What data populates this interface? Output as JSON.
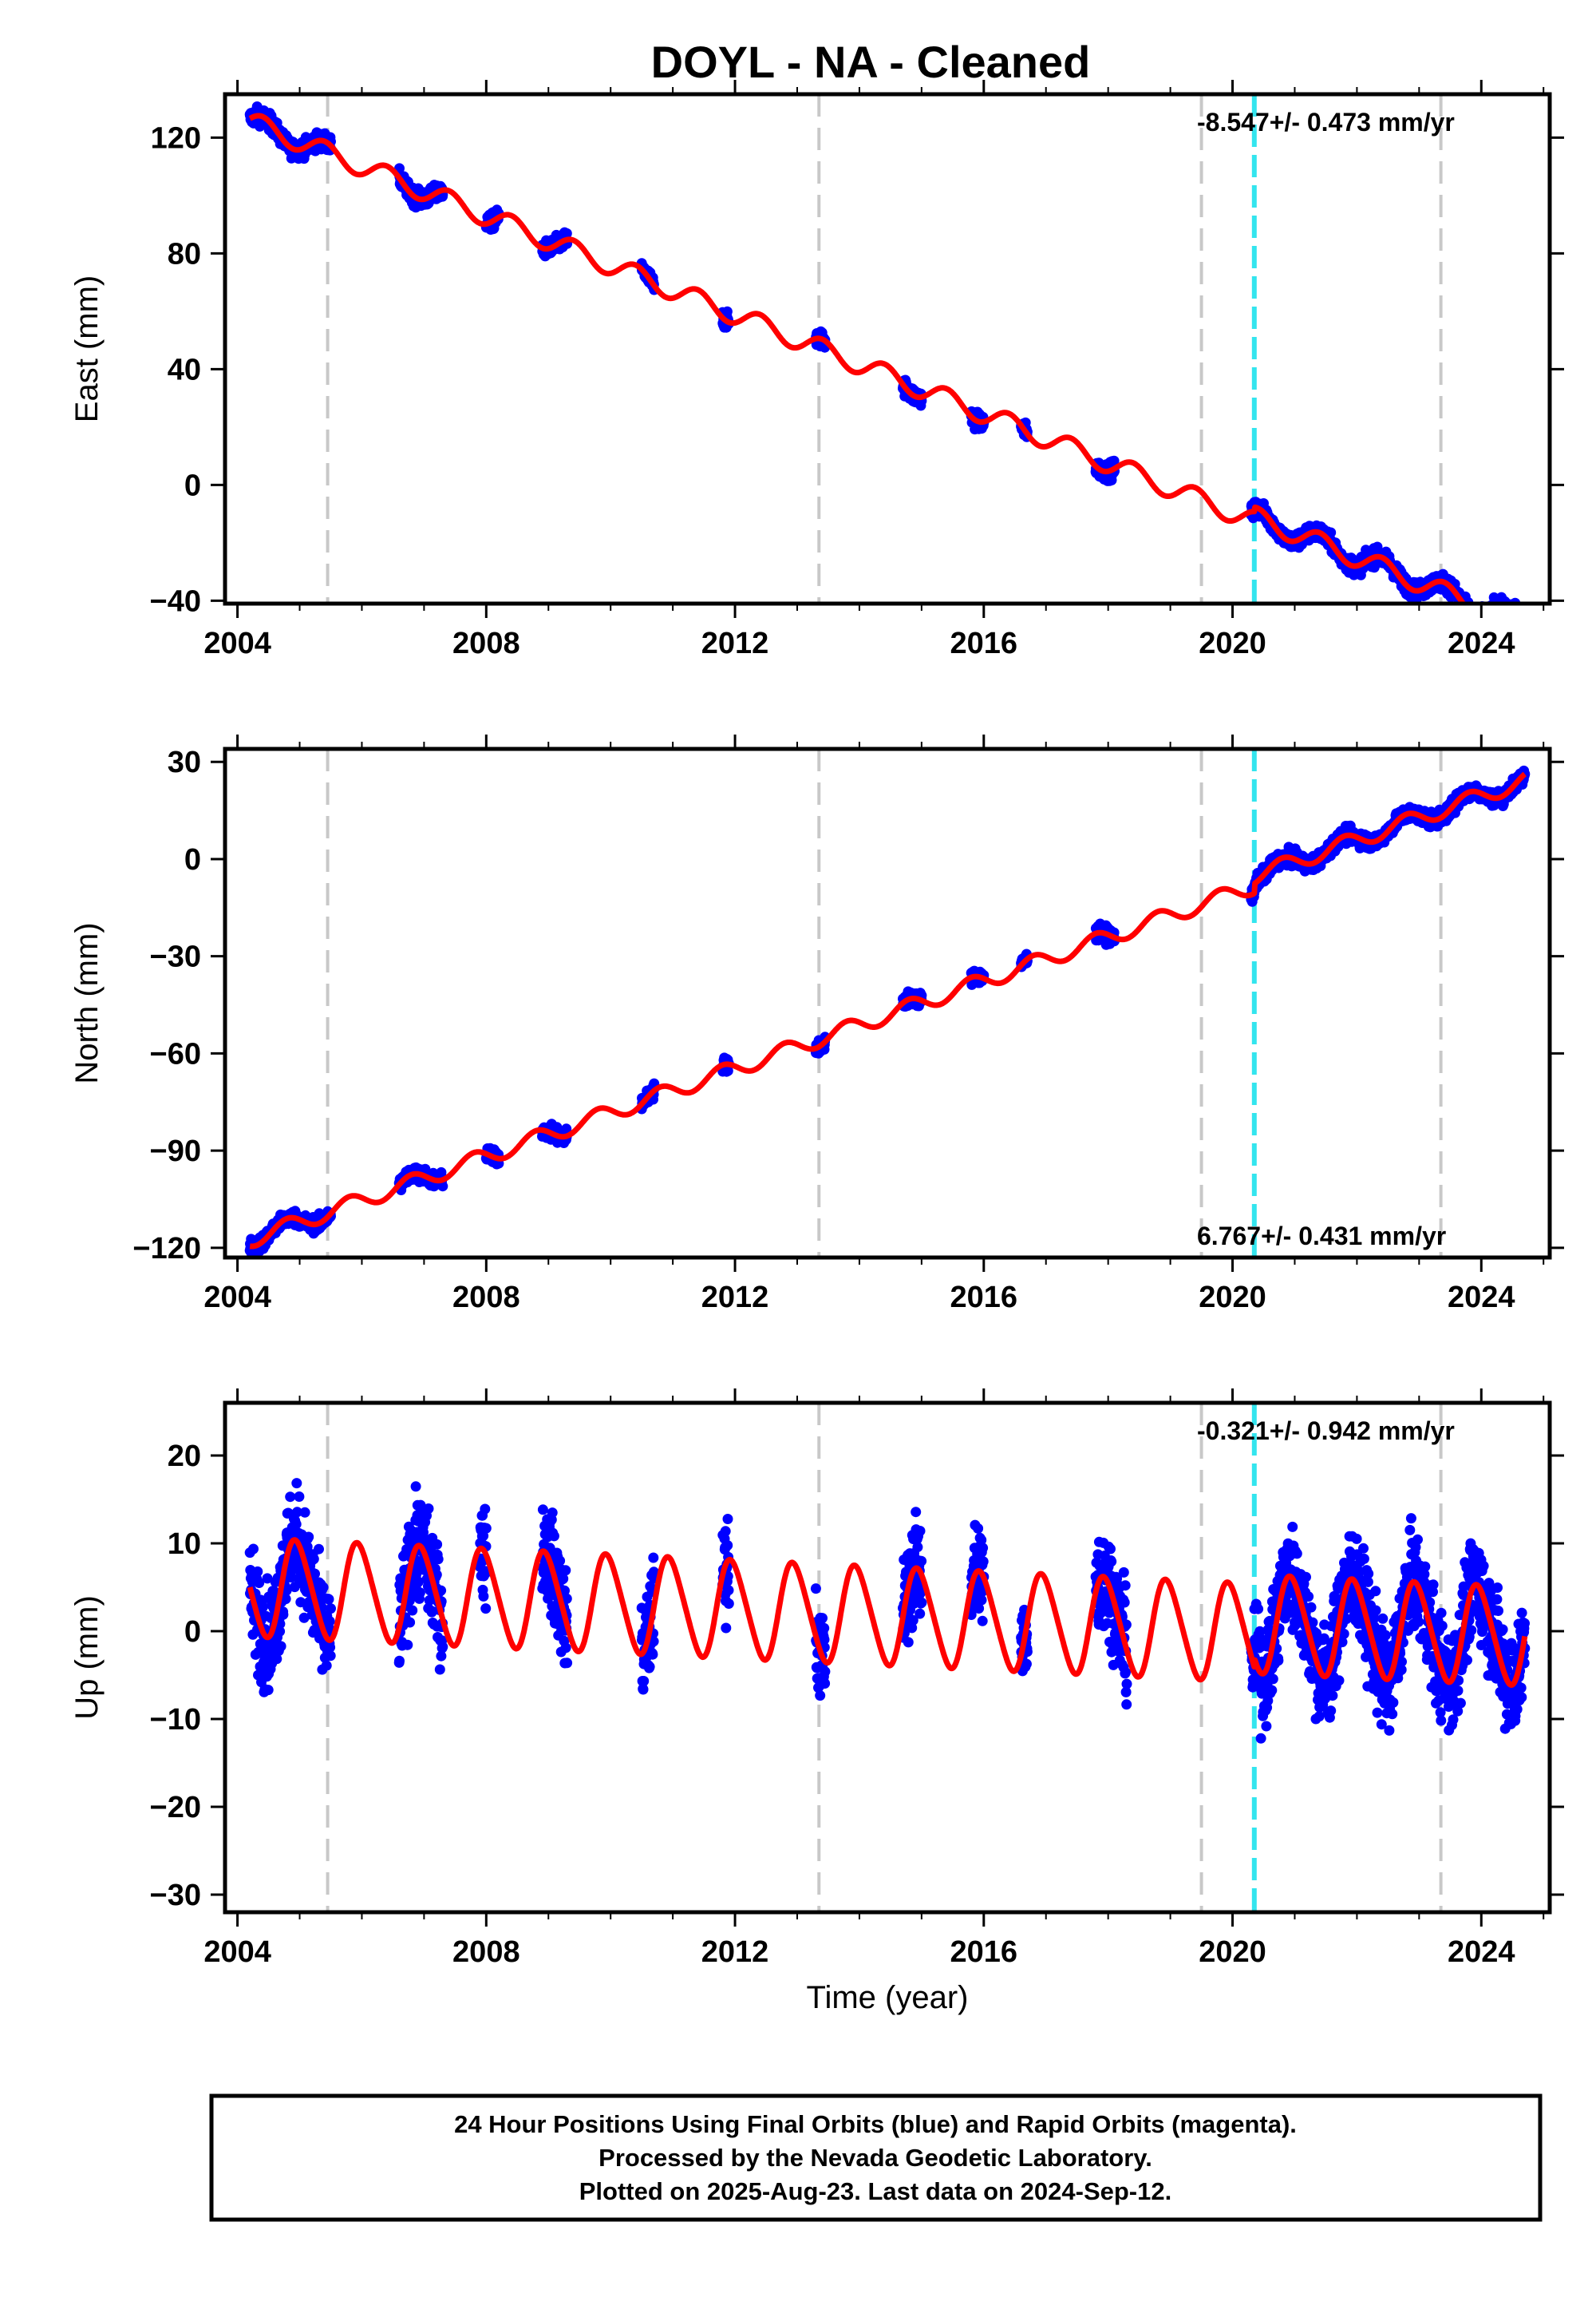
{
  "chart_data": {
    "type": "scatter",
    "title": "DOYL  - NA - Cleaned",
    "xlabel": "Time (year)",
    "xlim": [
      2003.8,
      2025.1
    ],
    "x_ticks": [
      2004,
      2008,
      2012,
      2016,
      2020,
      2024
    ],
    "dashed_lines_gray": [
      2005.45,
      2013.35,
      2019.5,
      2023.35
    ],
    "dashed_lines_cyan": [
      2020.35
    ],
    "colors": {
      "data_points": "#0000ff",
      "model_line": "#ff0000",
      "gray_dash": "#c8c8c8",
      "cyan_dash": "#33e5ee"
    },
    "panels": [
      {
        "ylabel": "East (mm)",
        "ylim": [
          -41,
          135
        ],
        "y_ticks": [
          -40,
          0,
          40,
          80,
          120
        ],
        "rate": "-8.547+/- 0.473 mm/yr",
        "rate_position": "top",
        "model": {
          "start": 2004.2,
          "end": 2024.7,
          "v0": 125.5,
          "vstep": -8.547,
          "steps": [
            [
              2020.35,
              1.5
            ]
          ],
          "amp": 3.5,
          "phase": 0.15,
          "amp2": 0
        },
        "noise": 2.0,
        "segments": [
          [
            2004.2,
            2005.5
          ],
          [
            2006.6,
            2007.3
          ],
          [
            2008.0,
            2008.2
          ],
          [
            2008.9,
            2009.3
          ],
          [
            2010.5,
            2010.7
          ],
          [
            2011.8,
            2011.9
          ],
          [
            2013.3,
            2013.45
          ],
          [
            2014.7,
            2015.0
          ],
          [
            2015.8,
            2016.0
          ],
          [
            2016.6,
            2016.7
          ],
          [
            2017.8,
            2018.1
          ],
          [
            2020.3,
            2024.7
          ]
        ]
      },
      {
        "ylabel": "North (mm)",
        "ylim": [
          -123,
          34
        ],
        "y_ticks": [
          -120,
          -90,
          -60,
          -30,
          0,
          30
        ],
        "rate": "6.767+/- 0.431 mm/yr",
        "rate_position": "bottom",
        "model": {
          "start": 2004.2,
          "end": 2024.7,
          "v0": -117.5,
          "vstep": 6.767,
          "steps": [
            [
              2020.35,
              3.0
            ]
          ],
          "amp": 2.5,
          "phase": 0.55,
          "amp2": 0
        },
        "noise": 1.6,
        "segments": [
          [
            2004.2,
            2005.5
          ],
          [
            2006.6,
            2007.3
          ],
          [
            2008.0,
            2008.2
          ],
          [
            2008.9,
            2009.3
          ],
          [
            2010.5,
            2010.7
          ],
          [
            2011.8,
            2011.9
          ],
          [
            2013.3,
            2013.45
          ],
          [
            2014.7,
            2015.0
          ],
          [
            2015.8,
            2016.0
          ],
          [
            2016.6,
            2016.7
          ],
          [
            2017.8,
            2018.1
          ],
          [
            2020.3,
            2024.7
          ]
        ]
      },
      {
        "ylabel": "Up (mm)",
        "ylim": [
          -32,
          26
        ],
        "y_ticks": [
          -30,
          -20,
          -10,
          0,
          10,
          20
        ],
        "rate": "-0.321+/- 0.942 mm/yr",
        "rate_position": "top",
        "model": {
          "start": 2004.2,
          "end": 2024.7,
          "v0": 5.0,
          "vstep": -0.321,
          "steps": [
            [
              2020.35,
              1.0
            ]
          ],
          "amp": 5.5,
          "phase": 0.7,
          "amp2": 0.6
        },
        "noise": 4.0,
        "segments": [
          [
            2004.2,
            2005.5
          ],
          [
            2006.6,
            2007.3
          ],
          [
            2007.9,
            2008.0
          ],
          [
            2008.9,
            2009.3
          ],
          [
            2010.5,
            2010.7
          ],
          [
            2011.8,
            2011.9
          ],
          [
            2013.3,
            2013.45
          ],
          [
            2014.7,
            2015.0
          ],
          [
            2015.8,
            2016.0
          ],
          [
            2016.6,
            2016.7
          ],
          [
            2017.8,
            2018.3
          ],
          [
            2020.3,
            2024.7
          ]
        ]
      }
    ]
  },
  "footer": {
    "line1": "24 Hour Positions Using Final Orbits (blue) and Rapid Orbits (magenta).",
    "line2": "Processed by the Nevada Geodetic Laboratory.",
    "line3": "Plotted on 2025-Aug-23. Last data on 2024-Sep-12."
  }
}
